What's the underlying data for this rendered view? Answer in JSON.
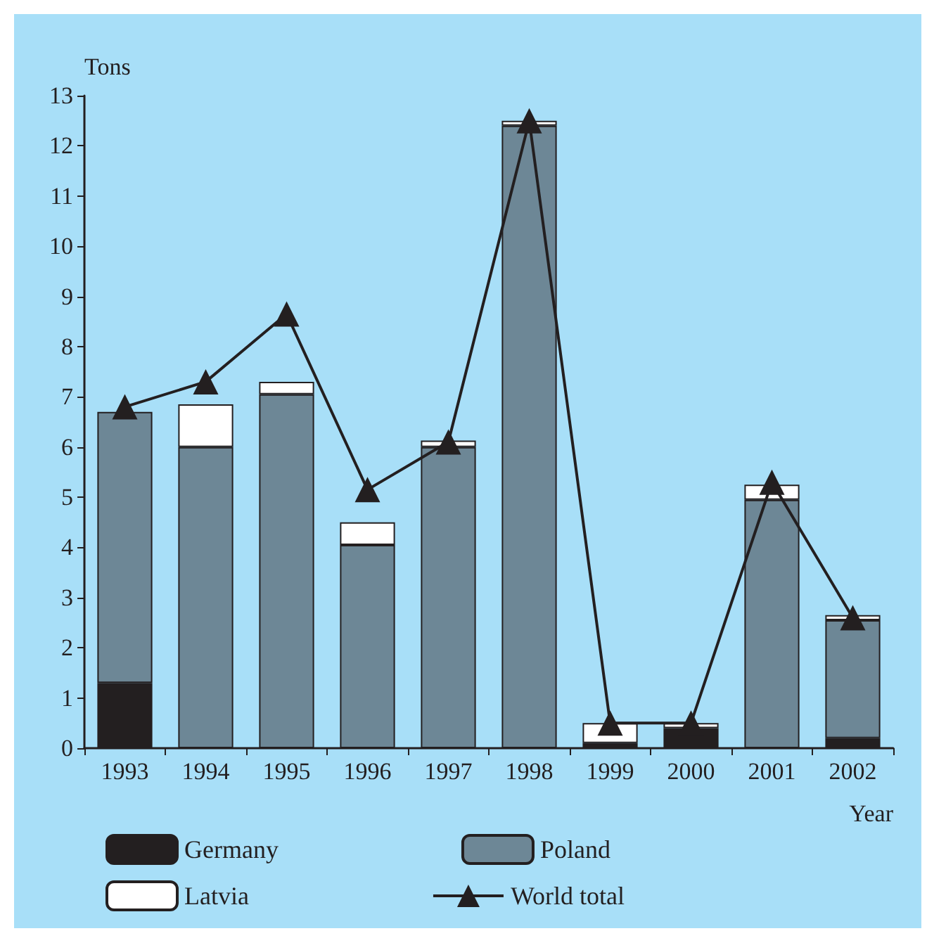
{
  "chart_data": {
    "type": "bar",
    "stacked": true,
    "xlabel": "Year",
    "ylabel": "Tons",
    "categories": [
      "1993",
      "1994",
      "1995",
      "1996",
      "1997",
      "1998",
      "1999",
      "2000",
      "2001",
      "2002"
    ],
    "series": [
      {
        "name": "Germany",
        "color": "#231f20",
        "values": [
          1.3,
          0,
          0,
          0,
          0,
          0,
          0.1,
          0.4,
          0,
          0.2
        ]
      },
      {
        "name": "Poland",
        "color": "#6d8796",
        "values": [
          5.4,
          6.0,
          7.05,
          4.05,
          6.0,
          12.4,
          0,
          0,
          4.95,
          2.35
        ]
      },
      {
        "name": "Latvia",
        "color": "#ffffff",
        "values": [
          0,
          0.85,
          0.25,
          0.45,
          0.13,
          0.1,
          0.4,
          0.1,
          0.3,
          0.1
        ]
      },
      {
        "name": "World total",
        "type": "line",
        "color": "#231f20",
        "marker": "triangle",
        "values": [
          6.8,
          7.3,
          8.65,
          5.15,
          6.1,
          12.5,
          0.5,
          0.5,
          5.3,
          2.6
        ]
      }
    ],
    "ylim": [
      0,
      13
    ],
    "yticks": [
      0,
      1,
      2,
      3,
      4,
      5,
      6,
      7,
      8,
      9,
      10,
      11,
      12,
      13
    ],
    "grid": false,
    "legend": "bottom"
  }
}
